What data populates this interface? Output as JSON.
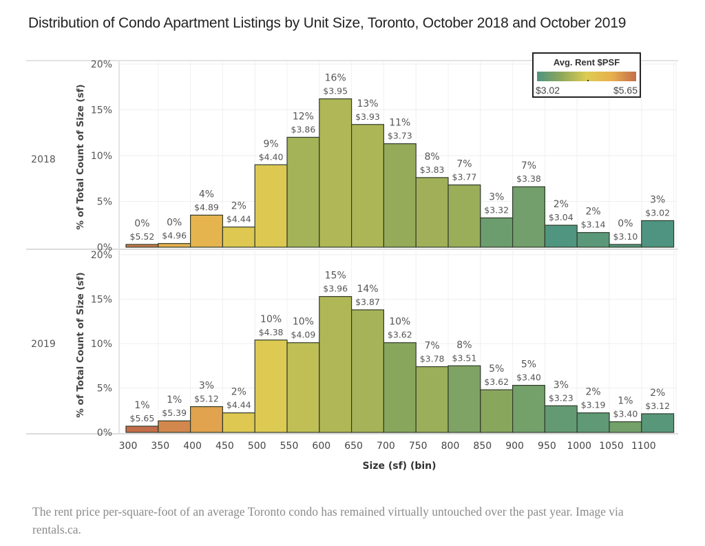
{
  "title": "Distribution of Condo Apartment Listings by Unit Size, Toronto, October 2018 and October 2019",
  "legend": {
    "title": "Avg. Rent $PSF",
    "min_label": "$3.02",
    "max_label": "$5.65",
    "min_value": 3.02,
    "max_value": 5.65,
    "colors": [
      "#4e9480",
      "#8fa85a",
      "#dccc52",
      "#e8b04e",
      "#c46d4a"
    ]
  },
  "caption": "The rent price per-square-foot of an average Toronto condo has remained virtually untouched over the past year. Image via rentals.ca.",
  "chart_data": {
    "type": "bar",
    "title": "Distribution of Condo Apartment Listings by Unit Size, Toronto, October 2018 and October 2019",
    "xlabel": "Size (sf) (bin)",
    "ylabel": "% of Total Count of Size (sf)",
    "ylim": [
      0,
      20
    ],
    "yticks": [
      "0%",
      "5%",
      "10%",
      "15%",
      "20%"
    ],
    "ytick_values": [
      0,
      5,
      10,
      15,
      20
    ],
    "grid": true,
    "categories": [
      "300",
      "350",
      "400",
      "450",
      "500",
      "550",
      "600",
      "650",
      "700",
      "750",
      "800",
      "850",
      "900",
      "950",
      "1000",
      "1050",
      "1100"
    ],
    "color_legend": "top-right",
    "panels": [
      {
        "name": "2018",
        "values": [
          0.3,
          0.4,
          3.5,
          2.2,
          9.0,
          12.0,
          16.2,
          13.4,
          11.3,
          7.6,
          6.8,
          3.2,
          6.6,
          2.4,
          1.6,
          0.3,
          2.9
        ],
        "value_labels": [
          "0%",
          "0%",
          "4%",
          "2%",
          "9%",
          "12%",
          "16%",
          "13%",
          "11%",
          "8%",
          "7%",
          "3%",
          "7%",
          "2%",
          "2%",
          "0%",
          "3%"
        ],
        "rent_psf": [
          5.52,
          4.96,
          4.89,
          4.44,
          4.4,
          3.86,
          3.95,
          3.93,
          3.73,
          3.83,
          3.77,
          3.32,
          3.38,
          3.04,
          3.14,
          3.1,
          3.02
        ],
        "rent_labels": [
          "$5.52",
          "$4.96",
          "$4.89",
          "$4.44",
          "$4.40",
          "$3.86",
          "$3.95",
          "$3.93",
          "$3.73",
          "$3.83",
          "$3.77",
          "$3.32",
          "$3.38",
          "$3.04",
          "$3.14",
          "$3.10",
          "$3.02"
        ]
      },
      {
        "name": "2019",
        "values": [
          0.7,
          1.3,
          2.9,
          2.2,
          10.4,
          10.1,
          15.3,
          13.8,
          10.1,
          7.4,
          7.5,
          4.8,
          5.3,
          3.0,
          2.2,
          1.2,
          2.1
        ],
        "value_labels": [
          "1%",
          "1%",
          "3%",
          "2%",
          "10%",
          "10%",
          "15%",
          "14%",
          "10%",
          "7%",
          "8%",
          "5%",
          "5%",
          "3%",
          "2%",
          "1%",
          "2%"
        ],
        "rent_psf": [
          5.65,
          5.39,
          5.12,
          4.44,
          4.38,
          4.09,
          3.96,
          3.87,
          3.62,
          3.78,
          3.51,
          3.62,
          3.4,
          3.23,
          3.19,
          3.4,
          3.12
        ],
        "rent_labels": [
          "$5.65",
          "$5.39",
          "$5.12",
          "$4.44",
          "$4.38",
          "$4.09",
          "$3.96",
          "$3.87",
          "$3.62",
          "$3.78",
          "$3.51",
          "$3.62",
          "$3.40",
          "$3.23",
          "$3.19",
          "$3.40",
          "$3.12"
        ]
      }
    ]
  }
}
